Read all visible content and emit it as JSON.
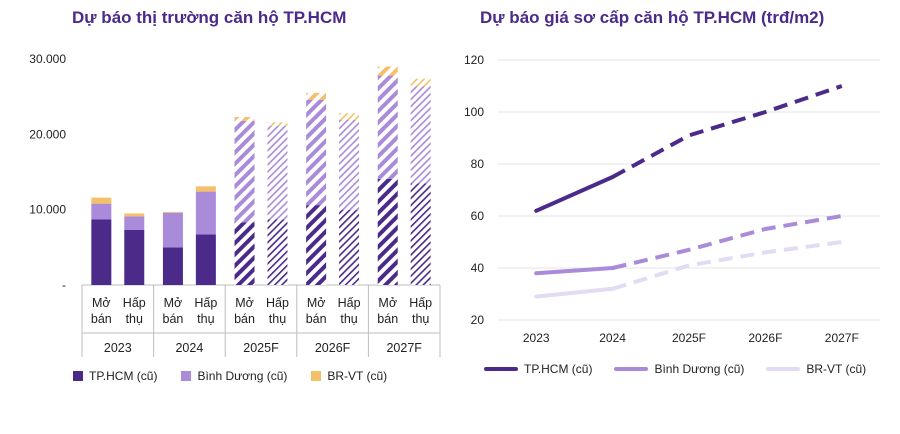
{
  "chart_data": [
    {
      "type": "bar",
      "stacked": true,
      "title": "Dự báo thị trường căn hộ TP.HCM",
      "groups": [
        {
          "year": "2023",
          "bars": [
            {
              "label": [
                "Mở",
                "bán"
              ]
            },
            {
              "label": [
                "Hấp",
                "thụ"
              ]
            }
          ]
        },
        {
          "year": "2024",
          "bars": [
            {
              "label": [
                "Mở",
                "bán"
              ]
            },
            {
              "label": [
                "Hấp",
                "thụ"
              ]
            }
          ]
        },
        {
          "year": "2025F",
          "bars": [
            {
              "label": [
                "Mở",
                "bán"
              ]
            },
            {
              "label": [
                "Hấp",
                "thụ"
              ]
            }
          ]
        },
        {
          "year": "2026F",
          "bars": [
            {
              "label": [
                "Mở",
                "bán"
              ]
            },
            {
              "label": [
                "Hấp",
                "thụ"
              ]
            }
          ]
        },
        {
          "year": "2027F",
          "bars": [
            {
              "label": [
                "Mở",
                "bán"
              ]
            },
            {
              "label": [
                "Hấp",
                "thụ"
              ]
            }
          ]
        }
      ],
      "series": [
        {
          "name": "TP.HCM (cũ)",
          "color": "#4b2a8a",
          "values": [
            8700,
            7300,
            5000,
            6700,
            8300,
            8700,
            10600,
            10000,
            14100,
            13500
          ]
        },
        {
          "name": "Bình Dương (cũ)",
          "color": "#a98bd9",
          "values": [
            2100,
            1800,
            4600,
            5700,
            13500,
            12400,
            14000,
            11900,
            13700,
            12900
          ]
        },
        {
          "name": "BR-VT (cũ)",
          "color": "#f5c06a",
          "values": [
            800,
            400,
            100,
            700,
            500,
            500,
            900,
            900,
            1200,
            1000
          ]
        }
      ],
      "forecast_pattern": "hatched",
      "ylim": [
        0,
        30000
      ],
      "yticks": [
        "-",
        "10.000",
        "20.000",
        "30.000"
      ],
      "ytick_values": [
        0,
        10000,
        20000,
        30000
      ],
      "grid": false,
      "legend": "bottom"
    },
    {
      "type": "line",
      "title": "Dự báo giá sơ cấp căn hộ TP.HCM (trđ/m2)",
      "categories": [
        "2023",
        "2024",
        "2025F",
        "2026F",
        "2027F"
      ],
      "series": [
        {
          "name": "TP.HCM (cũ)",
          "color": "#4b2a8a",
          "values": [
            62,
            75,
            91,
            100,
            110
          ]
        },
        {
          "name": "Bình Dương (cũ)",
          "color": "#a98bd9",
          "values": [
            38,
            40,
            47,
            55,
            60
          ]
        },
        {
          "name": "BR-VT (cũ)",
          "color": "#e3dbf3",
          "values": [
            29,
            32,
            41,
            46,
            50
          ]
        }
      ],
      "forecast_dashed_from": "2024",
      "ylim": [
        20,
        120
      ],
      "yticks": [
        20,
        40,
        60,
        80,
        100,
        120
      ],
      "grid": true,
      "legend": "bottom"
    }
  ]
}
